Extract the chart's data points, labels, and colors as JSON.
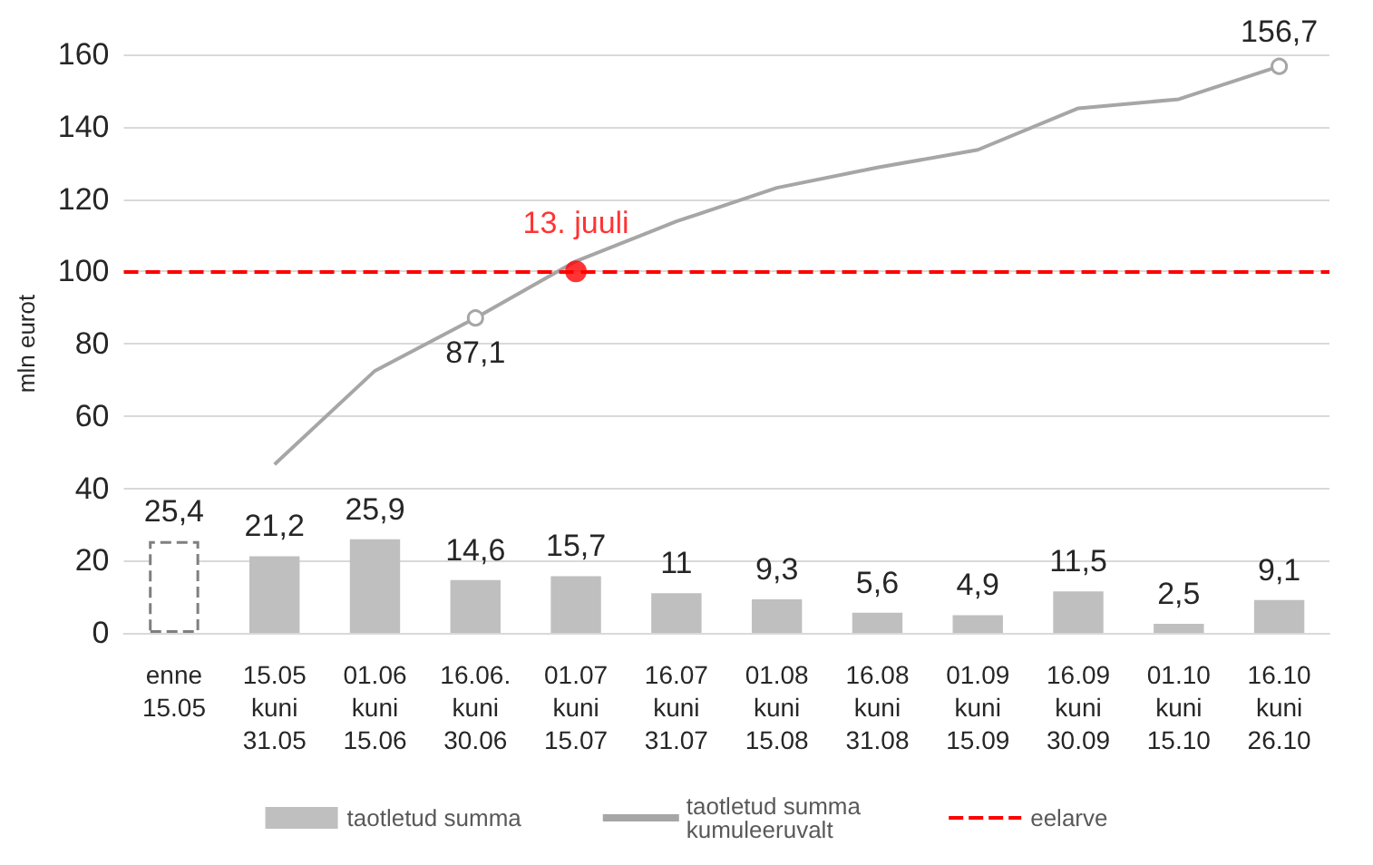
{
  "chart_data": {
    "type": "bar",
    "categories": [
      "enne\n15.05",
      "15.05\nkuni\n31.05",
      "01.06\nkuni\n15.06",
      "16.06.\nkuni\n30.06",
      "01.07\nkuni\n15.07",
      "16.07\nkuni\n31.07",
      "01.08\nkuni\n15.08",
      "16.08\nkuni\n31.08",
      "01.09\nkuni\n15.09",
      "16.09\nkuni\n30.09",
      "01.10\nkuni\n15.10",
      "16.10\nkuni\n26.10"
    ],
    "ylabel": "mln eurot",
    "ylim": [
      0,
      160
    ],
    "yticks": [
      0,
      20,
      40,
      60,
      80,
      100,
      120,
      140,
      160
    ],
    "grid": "y",
    "legend": "bottom",
    "series": [
      {
        "name": "taotletud summa",
        "color": "#bfbfbf",
        "colors": [
          "#ffffff",
          "#bfbfbf",
          "#bfbfbf",
          "#bfbfbf",
          "#bfbfbf",
          "#bfbfbf",
          "#bfbfbf",
          "#bfbfbf",
          "#bfbfbf",
          "#bfbfbf",
          "#bfbfbf",
          "#bfbfbf"
        ],
        "values": [
          25.4,
          21.2,
          25.9,
          14.6,
          15.7,
          11,
          9.3,
          5.6,
          4.9,
          11.5,
          2.5,
          9.1
        ],
        "value_labels": [
          "25,4",
          "21,2",
          "25,9",
          "14,6",
          "15,7",
          "11",
          "9,3",
          "5,6",
          "4,9",
          "11,5",
          "2,5",
          "9,1"
        ]
      },
      {
        "name": "taotletud summa kumuleeruvalt",
        "type": "line",
        "color": "#a6a6a6",
        "values": [
          null,
          46.6,
          72.5,
          87.1,
          102.8,
          113.8,
          123.1,
          128.7,
          133.6,
          145.1,
          147.6,
          156.7
        ],
        "value_labels": [
          null,
          null,
          null,
          "87,1",
          null,
          null,
          null,
          null,
          null,
          null,
          null,
          "156,7"
        ]
      }
    ],
    "ref_lines": [
      {
        "axis": "y",
        "value": 100,
        "label": "eelarve",
        "color": "#ff0000",
        "line_style": "dashed"
      }
    ],
    "annotations": [
      {
        "text": "13. juuli",
        "x": "01.07\nkuni\n15.07",
        "y": 100
      }
    ]
  }
}
